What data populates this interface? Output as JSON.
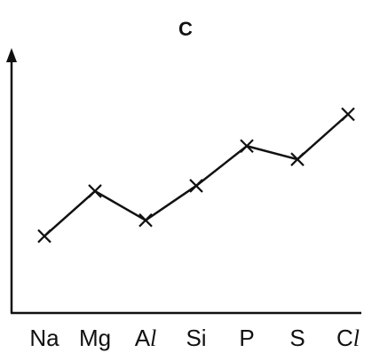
{
  "chart_data": {
    "type": "line",
    "title": "C",
    "xlabel": "",
    "ylabel": "",
    "categories": [
      {
        "lead": "Na",
        "tail": ""
      },
      {
        "lead": "Mg",
        "tail": ""
      },
      {
        "lead": "A",
        "tail": "l"
      },
      {
        "lead": "Si",
        "tail": ""
      },
      {
        "lead": "P",
        "tail": ""
      },
      {
        "lead": "S",
        "tail": ""
      },
      {
        "lead": "C",
        "tail": "l"
      }
    ],
    "values": [
      2.9,
      4.6,
      3.5,
      4.8,
      6.3,
      5.8,
      7.5
    ],
    "ylim": [
      0,
      10
    ],
    "grid": false,
    "marker": "x",
    "y_ticks_shown": false
  }
}
